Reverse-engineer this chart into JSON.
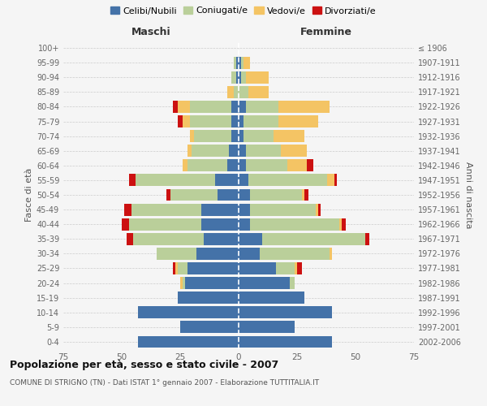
{
  "age_groups": [
    "0-4",
    "5-9",
    "10-14",
    "15-19",
    "20-24",
    "25-29",
    "30-34",
    "35-39",
    "40-44",
    "45-49",
    "50-54",
    "55-59",
    "60-64",
    "65-69",
    "70-74",
    "75-79",
    "80-84",
    "85-89",
    "90-94",
    "95-99",
    "100+"
  ],
  "birth_years": [
    "2002-2006",
    "1997-2001",
    "1992-1996",
    "1987-1991",
    "1982-1986",
    "1977-1981",
    "1972-1976",
    "1967-1971",
    "1962-1966",
    "1957-1961",
    "1952-1956",
    "1947-1951",
    "1942-1946",
    "1937-1941",
    "1932-1936",
    "1927-1931",
    "1922-1926",
    "1917-1921",
    "1912-1916",
    "1907-1911",
    "≤ 1906"
  ],
  "males": {
    "celibi": [
      43,
      25,
      43,
      26,
      23,
      22,
      18,
      15,
      16,
      16,
      9,
      10,
      5,
      4,
      3,
      3,
      3,
      0,
      1,
      1,
      0
    ],
    "coniugati": [
      0,
      0,
      0,
      0,
      1,
      4,
      17,
      30,
      31,
      30,
      20,
      34,
      17,
      16,
      16,
      18,
      18,
      2,
      2,
      1,
      0
    ],
    "vedovi": [
      0,
      0,
      0,
      0,
      1,
      1,
      0,
      0,
      0,
      0,
      0,
      0,
      2,
      2,
      2,
      3,
      5,
      3,
      0,
      0,
      0
    ],
    "divorziati": [
      0,
      0,
      0,
      0,
      0,
      1,
      0,
      3,
      3,
      3,
      2,
      3,
      0,
      0,
      0,
      2,
      2,
      0,
      0,
      0,
      0
    ]
  },
  "females": {
    "nubili": [
      40,
      24,
      40,
      28,
      22,
      16,
      9,
      10,
      5,
      5,
      5,
      4,
      3,
      3,
      2,
      2,
      3,
      0,
      1,
      1,
      0
    ],
    "coniugate": [
      0,
      0,
      0,
      0,
      2,
      8,
      30,
      44,
      38,
      28,
      22,
      34,
      18,
      15,
      13,
      15,
      14,
      4,
      2,
      1,
      0
    ],
    "vedove": [
      0,
      0,
      0,
      0,
      0,
      1,
      1,
      0,
      1,
      1,
      1,
      3,
      8,
      11,
      13,
      17,
      22,
      9,
      10,
      3,
      0
    ],
    "divorziate": [
      0,
      0,
      0,
      0,
      0,
      2,
      0,
      2,
      2,
      1,
      2,
      1,
      3,
      0,
      0,
      0,
      0,
      0,
      0,
      0,
      0
    ]
  },
  "colors": {
    "celibi": "#4472A8",
    "coniugati": "#BACF9A",
    "vedovi": "#F4C464",
    "divorziati": "#CC1111"
  },
  "title": "Popolazione per età, sesso e stato civile - 2007",
  "subtitle": "COMUNE DI STRIGNO (TN) - Dati ISTAT 1° gennaio 2007 - Elaborazione TUTTITALIA.IT",
  "xlabel_left": "Maschi",
  "xlabel_right": "Femmine",
  "ylabel_left": "Fasce di età",
  "ylabel_right": "Anni di nascita",
  "xlim": 75,
  "bg_color": "#f5f5f5",
  "grid_color": "#cccccc"
}
